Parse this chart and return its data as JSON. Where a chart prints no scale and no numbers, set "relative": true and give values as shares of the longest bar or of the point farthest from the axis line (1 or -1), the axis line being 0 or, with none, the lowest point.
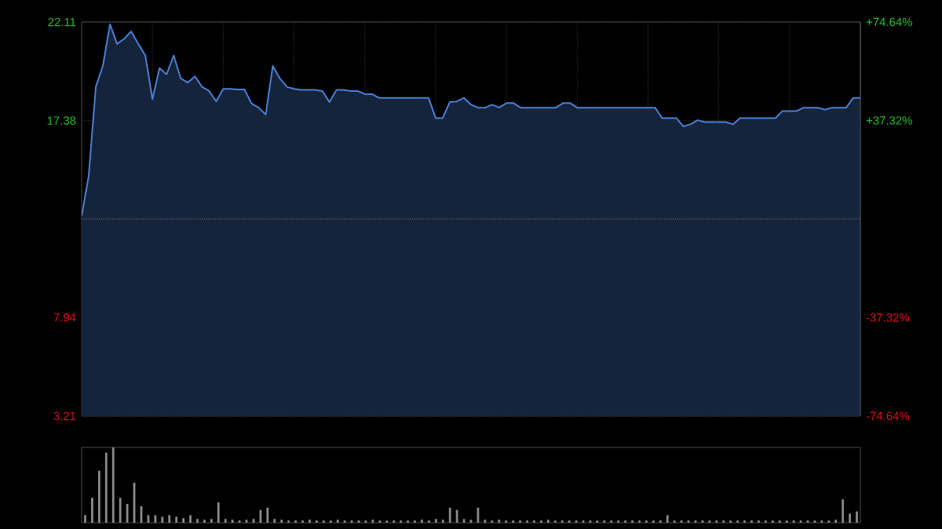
{
  "chart_data": [
    {
      "type": "area",
      "categories": [
        null,
        null,
        null,
        null,
        null,
        null,
        null,
        null,
        null,
        null,
        null,
        null,
        null,
        null,
        null,
        null,
        null,
        null,
        null,
        null,
        null,
        null,
        null,
        null,
        null,
        null,
        null,
        null,
        null,
        null,
        null,
        null,
        null,
        null,
        null,
        null,
        null,
        null,
        null,
        null,
        null,
        null,
        null,
        null,
        null,
        null,
        null,
        null,
        null,
        null,
        null,
        null,
        null,
        null,
        null,
        null,
        null,
        null,
        null,
        null,
        null,
        null,
        null,
        null,
        null,
        null,
        null,
        null,
        null,
        null,
        null,
        null,
        null,
        null,
        null,
        null,
        null,
        null,
        null,
        null,
        null,
        null,
        null,
        null,
        null,
        null,
        null,
        null,
        null,
        null,
        null,
        null,
        null,
        null,
        null,
        null,
        null,
        null,
        null,
        null,
        null,
        null,
        null,
        null,
        null,
        null,
        null,
        null,
        null,
        null,
        null
      ],
      "series": [
        {
          "color": "#4a7fd4",
          "values": [
            12.8,
            14.73,
            19.0,
            20.0,
            22.0,
            21.06,
            21.3,
            21.66,
            21.06,
            20.5,
            18.4,
            19.9,
            19.6,
            20.5,
            19.4,
            19.2,
            19.5,
            19.0,
            18.8,
            18.3,
            18.9,
            18.9,
            18.87,
            18.87,
            18.2,
            18.0,
            17.67,
            20.0,
            19.4,
            19.0,
            18.9,
            18.85,
            18.85,
            18.85,
            18.8,
            18.27,
            18.85,
            18.85,
            18.8,
            18.8,
            18.65,
            18.65,
            18.47,
            18.47,
            18.47,
            18.47,
            18.47,
            18.47,
            18.47,
            18.47,
            17.5,
            17.5,
            18.27,
            18.3,
            18.47,
            18.14,
            18.0,
            18.0,
            18.14,
            18.0,
            18.22,
            18.22,
            18.0,
            18.0,
            18.0,
            18.0,
            18.0,
            18.0,
            18.22,
            18.22,
            18.0,
            18.0,
            18.0,
            18.0,
            18.0,
            18.0,
            18.0,
            18.0,
            18.0,
            18.0,
            18.0,
            18.0,
            17.5,
            17.5,
            17.5,
            17.1,
            17.2,
            17.4,
            17.31,
            17.31,
            17.31,
            17.31,
            17.2,
            17.5,
            17.5,
            17.5,
            17.5,
            17.5,
            17.5,
            17.84,
            17.84,
            17.84,
            18.0,
            18.0,
            18.0,
            17.9,
            18.0,
            18.0,
            18.0,
            18.47,
            18.47
          ]
        }
      ],
      "ylim": [
        3.21,
        22.11
      ],
      "yticks": [
        3.21,
        7.94,
        17.38,
        22.11
      ],
      "y2lim": [
        -74.64,
        74.64
      ],
      "y2ticks": [
        {
          "value": -74.64,
          "label": "-74.64%"
        },
        {
          "value": -37.32,
          "label": "-37.32%"
        },
        {
          "value": 37.32,
          "label": "+37.32%"
        },
        {
          "value": 74.64,
          "label": "+74.64%"
        }
      ],
      "ref_lines": [
        {
          "axis": "y",
          "value": 12.66,
          "line_style": "dotted"
        }
      ],
      "grid": true
    },
    {
      "type": "bar",
      "relative": true,
      "color": "#8a8a8a",
      "categories": [
        null,
        null,
        null,
        null,
        null,
        null,
        null,
        null,
        null,
        null,
        null,
        null,
        null,
        null,
        null,
        null,
        null,
        null,
        null,
        null,
        null,
        null,
        null,
        null,
        null,
        null,
        null,
        null,
        null,
        null,
        null,
        null,
        null,
        null,
        null,
        null,
        null,
        null,
        null,
        null,
        null,
        null,
        null,
        null,
        null,
        null,
        null,
        null,
        null,
        null,
        null,
        null,
        null,
        null,
        null,
        null,
        null,
        null,
        null,
        null,
        null,
        null,
        null,
        null,
        null,
        null,
        null,
        null,
        null,
        null,
        null,
        null,
        null,
        null,
        null,
        null,
        null,
        null,
        null,
        null,
        null,
        null,
        null,
        null,
        null,
        null,
        null,
        null,
        null,
        null,
        null,
        null,
        null,
        null,
        null,
        null,
        null,
        null,
        null,
        null,
        null,
        null,
        null,
        null,
        null,
        null,
        null,
        null,
        null,
        null,
        null
      ],
      "values": [
        0.1,
        0.33,
        0.69,
        0.93,
        1.0,
        0.33,
        0.25,
        0.53,
        0.22,
        0.1,
        0.1,
        0.08,
        0.1,
        0.08,
        0.06,
        0.1,
        0.05,
        0.04,
        0.05,
        0.27,
        0.05,
        0.04,
        0.03,
        0.04,
        0.05,
        0.17,
        0.2,
        0.05,
        0.04,
        0.03,
        0.03,
        0.03,
        0.04,
        0.03,
        0.03,
        0.03,
        0.04,
        0.03,
        0.03,
        0.03,
        0.03,
        0.04,
        0.03,
        0.03,
        0.03,
        0.03,
        0.03,
        0.03,
        0.04,
        0.03,
        0.05,
        0.04,
        0.2,
        0.17,
        0.05,
        0.04,
        0.2,
        0.04,
        0.03,
        0.04,
        0.03,
        0.03,
        0.03,
        0.03,
        0.03,
        0.03,
        0.04,
        0.03,
        0.03,
        0.03,
        0.03,
        0.03,
        0.03,
        0.03,
        0.03,
        0.03,
        0.03,
        0.03,
        0.03,
        0.03,
        0.03,
        0.03,
        0.03,
        0.1,
        0.03,
        0.03,
        0.03,
        0.03,
        0.03,
        0.03,
        0.03,
        0.03,
        0.03,
        0.03,
        0.03,
        0.03,
        0.03,
        0.03,
        0.03,
        0.03,
        0.03,
        0.03,
        0.03,
        0.03,
        0.03,
        0.03,
        0.03,
        0.04,
        0.31,
        0.12,
        0.15
      ]
    }
  ]
}
